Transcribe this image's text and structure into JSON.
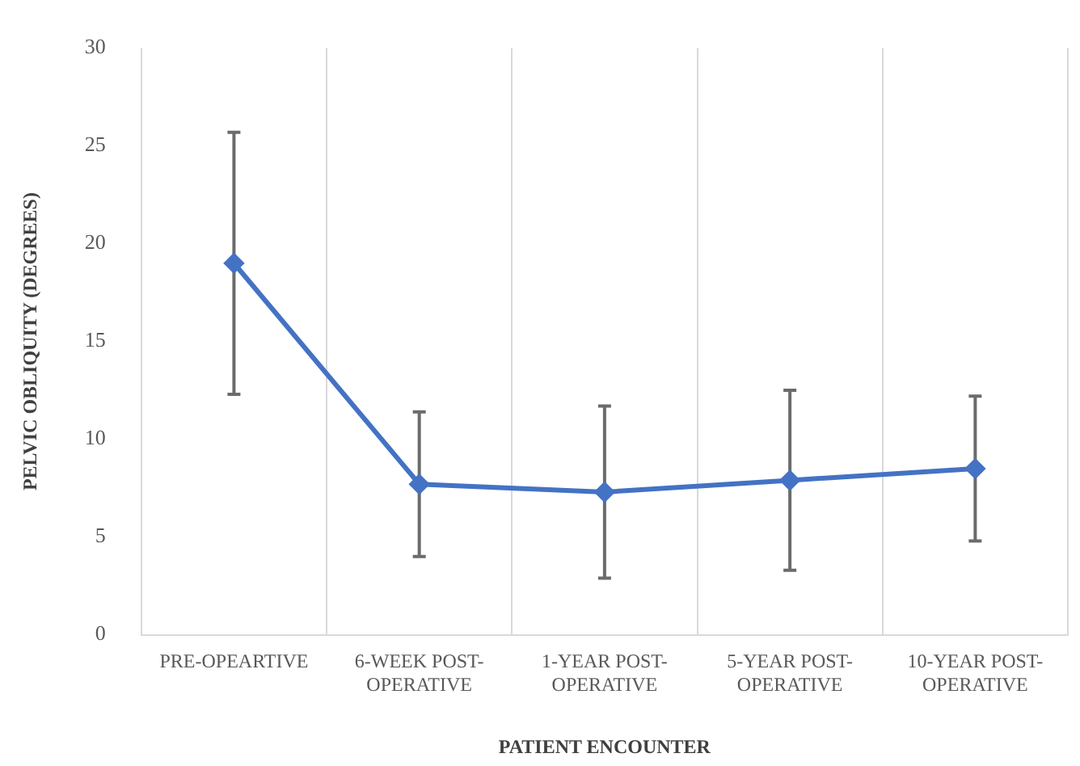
{
  "chart_data": {
    "type": "line",
    "xlabel": "PATIENT ENCOUNTER",
    "ylabel": "PELVIC OBLIQUITY (DEGREES)",
    "categories": [
      "PRE-OPEARTIVE",
      "6-WEEK POST-OPERATIVE",
      "1-YEAR POST-OPERATIVE",
      "5-YEAR POST-OPERATIVE",
      "10-YEAR POST-OPERATIVE"
    ],
    "series": [
      {
        "color": "#4472c4",
        "values": [
          19,
          7.7,
          7.3,
          7.9,
          8.5
        ],
        "errors": [
          [
            12.3,
            25.7
          ],
          [
            4.0,
            11.4
          ],
          [
            2.9,
            11.7
          ],
          [
            3.3,
            12.5
          ],
          [
            4.8,
            12.2
          ]
        ]
      }
    ],
    "ylim": [
      0,
      30
    ],
    "yticks": [
      0,
      5,
      10,
      15,
      20,
      25,
      30
    ],
    "grid": "x",
    "legend": false,
    "marker": "diamond",
    "line_style": "solid"
  }
}
